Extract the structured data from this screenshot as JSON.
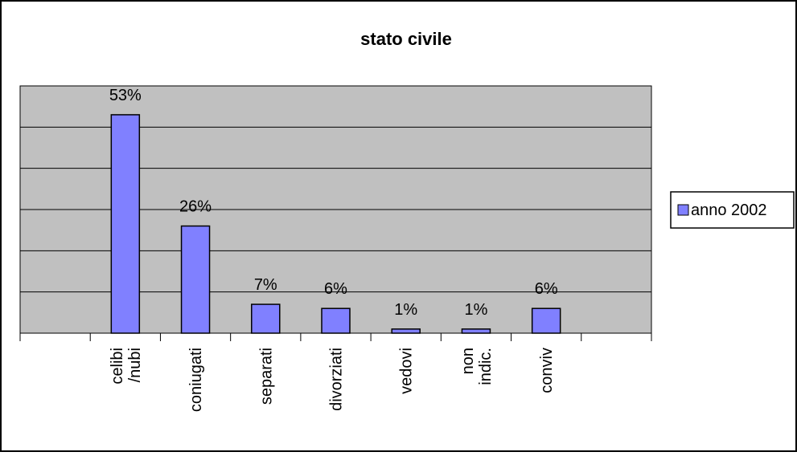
{
  "chart_data": {
    "type": "bar",
    "title": "stato civile",
    "categories": [
      "",
      "celibi\n/nubi",
      "coniugati",
      "separati",
      "divorziati",
      "vedovi",
      "non\nindic.",
      "conviv",
      ""
    ],
    "series": [
      {
        "name": "anno 2002",
        "values": [
          null,
          53,
          26,
          7,
          6,
          1,
          1,
          6,
          null
        ]
      }
    ],
    "data_labels": [
      "",
      "53%",
      "26%",
      "7%",
      "6%",
      "1%",
      "1%",
      "6%",
      ""
    ],
    "ylim": [
      0,
      60
    ],
    "yticks": [
      0,
      10,
      20,
      30,
      40,
      50,
      60
    ],
    "grid": true,
    "legend_position": "right",
    "colors": {
      "bar": "#8080ff",
      "plot_area": "#c0c0c0",
      "grid": "#000000",
      "frame": "#000000"
    }
  }
}
